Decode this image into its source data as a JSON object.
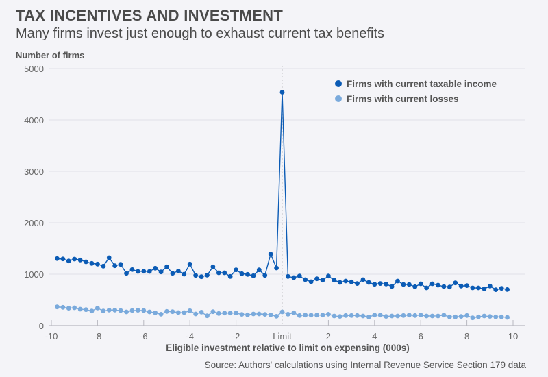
{
  "header": {
    "title": "TAX INCENTIVES AND INVESTMENT",
    "subtitle": "Many firms invest just enough to exhaust current tax benefits"
  },
  "footer": {
    "source": "Source: Authors' calculations using Internal Revenue Service Section 179 data"
  },
  "chart_data": {
    "type": "line",
    "title": "TAX INCENTIVES AND INVESTMENT",
    "subtitle": "Many firms invest just enough to exhaust current tax benefits",
    "xlabel": "Eligible investment relative to limit on expensing (000s)",
    "ylabel": "Number of firms",
    "xlim": [
      -10,
      10
    ],
    "ylim": [
      0,
      5000
    ],
    "x_ticks": [
      {
        "value": -10,
        "label": "-10"
      },
      {
        "value": -8,
        "label": "-8"
      },
      {
        "value": -6,
        "label": "-6"
      },
      {
        "value": -4,
        "label": "-4"
      },
      {
        "value": -2,
        "label": "-2"
      },
      {
        "value": 0,
        "label": "Limit"
      },
      {
        "value": 2,
        "label": "2"
      },
      {
        "value": 4,
        "label": "4"
      },
      {
        "value": 6,
        "label": "6"
      },
      {
        "value": 8,
        "label": "8"
      },
      {
        "value": 10,
        "label": "10"
      }
    ],
    "y_ticks": [
      0,
      1000,
      2000,
      3000,
      4000,
      5000
    ],
    "grid": true,
    "reference_line": {
      "x": 0,
      "style": "dotted"
    },
    "legend_position": "top-right",
    "x_start": -9.75,
    "x_step": 0.25,
    "series": [
      {
        "name": "Firms with current taxable income",
        "color": "#0b5bb5",
        "values": [
          1303,
          1297,
          1257,
          1293,
          1276,
          1240,
          1209,
          1196,
          1156,
          1320,
          1164,
          1191,
          1017,
          1089,
          1053,
          1057,
          1053,
          1116,
          1044,
          1143,
          1017,
          1062,
          1000,
          1196,
          977,
          951,
          982,
          1143,
          1027,
          1027,
          956,
          1084,
          1009,
          996,
          969,
          1084,
          977,
          1391,
          1120,
          4540,
          956,
          933,
          964,
          893,
          853,
          911,
          884,
          964,
          884,
          840,
          867,
          849,
          818,
          893,
          840,
          804,
          818,
          809,
          760,
          867,
          800,
          800,
          756,
          813,
          733,
          813,
          787,
          760,
          751,
          831,
          769,
          778,
          733,
          733,
          716,
          769,
          698,
          724,
          702
        ]
      },
      {
        "name": "Firms with current losses",
        "color": "#7aaadc",
        "values": [
          364,
          356,
          338,
          347,
          320,
          311,
          284,
          342,
          284,
          302,
          302,
          293,
          267,
          293,
          298,
          293,
          267,
          249,
          222,
          276,
          271,
          253,
          253,
          289,
          227,
          262,
          191,
          271,
          236,
          244,
          244,
          244,
          218,
          209,
          227,
          227,
          218,
          209,
          182,
          267,
          222,
          249,
          196,
          204,
          204,
          204,
          204,
          222,
          187,
          178,
          196,
          196,
          196,
          187,
          169,
          204,
          204,
          178,
          187,
          187,
          196,
          204,
          196,
          204,
          187,
          187,
          187,
          204,
          169,
          169,
          178,
          196,
          151,
          169,
          187,
          178,
          169,
          169,
          160
        ]
      }
    ]
  }
}
